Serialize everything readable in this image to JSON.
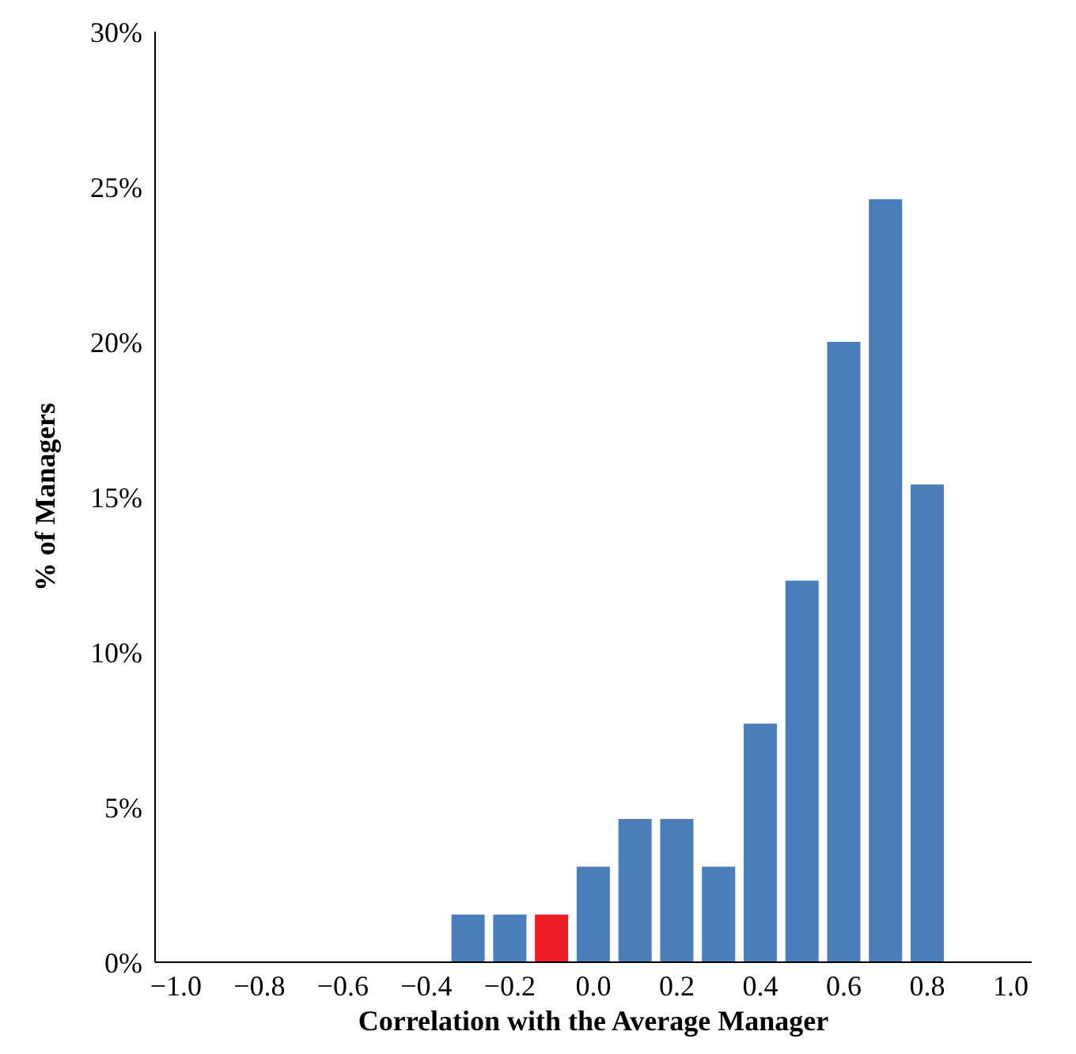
{
  "chart_data": {
    "type": "bar",
    "xlabel": "Correlation with the Average Manager",
    "ylabel": "% of Managers",
    "categories": [
      "−1.0",
      null,
      "−0.8",
      null,
      "−0.6",
      null,
      "−0.4",
      null,
      "−0.2",
      null,
      "0.0",
      null,
      "0.2",
      null,
      "0.4",
      null,
      "0.6",
      null,
      "0.8",
      null,
      "1.0"
    ],
    "values": [
      null,
      null,
      null,
      null,
      null,
      null,
      null,
      1.54,
      1.54,
      1.54,
      3.08,
      4.62,
      4.62,
      3.08,
      7.69,
      12.3,
      20.0,
      24.6,
      15.4,
      null,
      null
    ],
    "colors": [
      "#4a7ebb",
      "#4a7ebb",
      "#4a7ebb",
      "#4a7ebb",
      "#4a7ebb",
      "#4a7ebb",
      "#4a7ebb",
      "#4a7ebb",
      "#4a7ebb",
      "#ee1c24",
      "#4a7ebb",
      "#4a7ebb",
      "#4a7ebb",
      "#4a7ebb",
      "#4a7ebb",
      "#4a7ebb",
      "#4a7ebb",
      "#4a7ebb",
      "#4a7ebb",
      "#4a7ebb",
      "#4a7ebb"
    ],
    "ylim": [
      0,
      30
    ],
    "yticks": [
      {
        "value": 0,
        "label": "0%"
      },
      {
        "value": 5,
        "label": "5%"
      },
      {
        "value": 10,
        "label": "10%"
      },
      {
        "value": 15,
        "label": "15%"
      },
      {
        "value": 20,
        "label": "20%"
      },
      {
        "value": 25,
        "label": "25%"
      },
      {
        "value": 30,
        "label": "30%"
      }
    ],
    "grid": false,
    "legend": false
  }
}
